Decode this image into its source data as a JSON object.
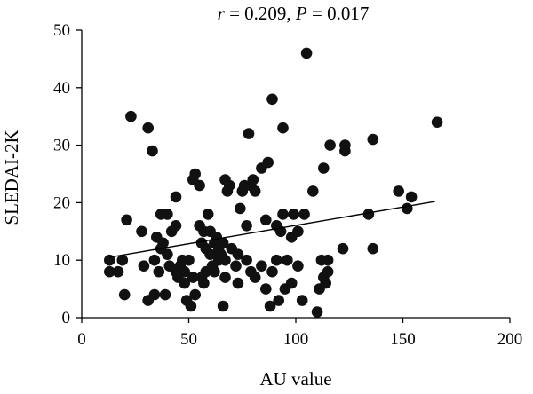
{
  "chart_data": {
    "type": "scatter",
    "title": {
      "r_symbol": "r",
      "r_text": " = 0.209, ",
      "p_symbol": "P",
      "p_text": " = 0.017"
    },
    "xlabel": "AU value",
    "ylabel": "SLEDAI-2K",
    "xlim": [
      0,
      200
    ],
    "ylim": [
      0,
      50
    ],
    "xticks": [
      0,
      50,
      100,
      150,
      200
    ],
    "yticks": [
      0,
      10,
      20,
      30,
      40,
      50
    ],
    "grid": false,
    "point_color": "#111111",
    "regression_line": {
      "x": [
        13,
        165
      ],
      "y": [
        10.5,
        20.2
      ]
    },
    "points": [
      [
        105,
        46
      ],
      [
        89,
        38
      ],
      [
        166,
        34
      ],
      [
        23,
        35
      ],
      [
        31,
        33
      ],
      [
        78,
        32
      ],
      [
        94,
        33
      ],
      [
        136,
        31
      ],
      [
        116,
        30
      ],
      [
        123,
        30
      ],
      [
        33,
        29
      ],
      [
        123,
        29
      ],
      [
        87,
        27
      ],
      [
        84,
        26
      ],
      [
        113,
        26
      ],
      [
        53,
        25
      ],
      [
        52,
        24
      ],
      [
        55,
        23
      ],
      [
        67,
        24
      ],
      [
        69,
        23
      ],
      [
        76,
        23
      ],
      [
        68,
        22
      ],
      [
        75,
        22
      ],
      [
        79,
        23
      ],
      [
        80,
        24
      ],
      [
        81,
        22
      ],
      [
        108,
        22
      ],
      [
        148,
        22
      ],
      [
        154,
        21
      ],
      [
        44,
        21
      ],
      [
        152,
        19
      ],
      [
        74,
        19
      ],
      [
        37,
        18
      ],
      [
        40,
        18
      ],
      [
        59,
        18
      ],
      [
        94,
        18
      ],
      [
        99,
        18
      ],
      [
        104,
        18
      ],
      [
        134,
        18
      ],
      [
        21,
        17
      ],
      [
        28,
        15
      ],
      [
        35,
        14
      ],
      [
        38,
        13
      ],
      [
        42,
        15
      ],
      [
        44,
        16
      ],
      [
        55,
        16
      ],
      [
        57,
        15
      ],
      [
        60,
        15
      ],
      [
        62,
        13
      ],
      [
        63,
        14
      ],
      [
        66,
        13
      ],
      [
        77,
        16
      ],
      [
        86,
        17
      ],
      [
        91,
        16
      ],
      [
        93,
        15
      ],
      [
        98,
        14
      ],
      [
        101,
        15
      ],
      [
        56,
        13
      ],
      [
        58,
        12
      ],
      [
        60,
        11
      ],
      [
        64,
        12
      ],
      [
        65,
        11
      ],
      [
        70,
        12
      ],
      [
        73,
        11
      ],
      [
        37,
        12
      ],
      [
        40,
        11
      ],
      [
        47,
        10
      ],
      [
        50,
        10
      ],
      [
        46,
        9
      ],
      [
        13,
        10
      ],
      [
        19,
        10
      ],
      [
        13,
        8
      ],
      [
        17,
        8
      ],
      [
        29,
        9
      ],
      [
        34,
        10
      ],
      [
        36,
        8
      ],
      [
        41,
        9
      ],
      [
        44,
        8
      ],
      [
        48,
        8
      ],
      [
        52,
        7
      ],
      [
        56,
        7
      ],
      [
        58,
        8
      ],
      [
        61,
        9
      ],
      [
        64,
        10
      ],
      [
        67,
        10
      ],
      [
        72,
        9
      ],
      [
        77,
        10
      ],
      [
        79,
        8
      ],
      [
        81,
        7
      ],
      [
        84,
        9
      ],
      [
        89,
        8
      ],
      [
        91,
        10
      ],
      [
        96,
        10
      ],
      [
        101,
        9
      ],
      [
        112,
        10
      ],
      [
        115,
        10
      ],
      [
        122,
        12
      ],
      [
        136,
        12
      ],
      [
        113,
        7
      ],
      [
        115,
        8
      ],
      [
        114,
        6
      ],
      [
        111,
        5
      ],
      [
        20,
        4
      ],
      [
        31,
        3
      ],
      [
        34,
        4
      ],
      [
        39,
        4
      ],
      [
        45,
        7
      ],
      [
        48,
        6
      ],
      [
        49,
        3
      ],
      [
        51,
        2
      ],
      [
        53,
        4
      ],
      [
        57,
        6
      ],
      [
        62,
        8
      ],
      [
        66,
        2
      ],
      [
        67,
        7
      ],
      [
        73,
        6
      ],
      [
        88,
        2
      ],
      [
        92,
        3
      ],
      [
        95,
        5
      ],
      [
        98,
        6
      ],
      [
        86,
        5
      ],
      [
        103,
        3
      ],
      [
        110,
        1
      ]
    ]
  }
}
